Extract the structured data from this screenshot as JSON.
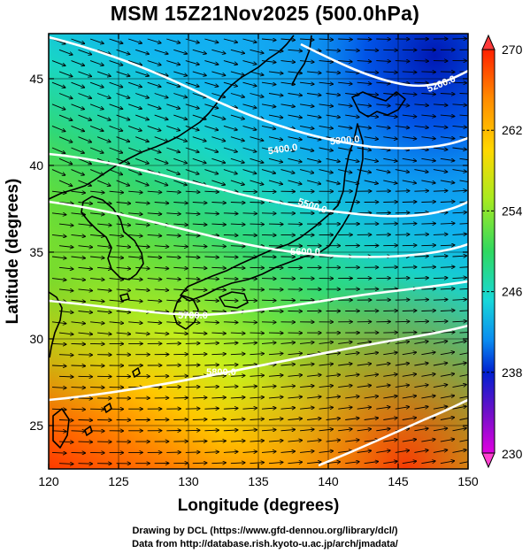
{
  "title": "MSM 15Z21Nov2025 (500.0hPa)",
  "x_axis": {
    "label": "Longitude (degrees)",
    "range": [
      120,
      150
    ],
    "ticks": [
      "120",
      "125",
      "130",
      "135",
      "140",
      "145",
      "150"
    ]
  },
  "y_axis": {
    "label": "Latitude  (degrees)",
    "range": [
      22.5,
      47.6
    ],
    "ticks": [
      "25",
      "30",
      "35",
      "40",
      "45"
    ]
  },
  "colorbar": {
    "range": [
      230,
      270
    ],
    "ticks": [
      "270",
      "262",
      "254",
      "246",
      "238",
      "230"
    ]
  },
  "contours": [
    {
      "label": "5200.0"
    },
    {
      "label": "5300.0"
    },
    {
      "label": "5400.0"
    },
    {
      "label": "5500.0"
    },
    {
      "label": "5600.0"
    },
    {
      "label": "5700.0"
    },
    {
      "label": "5800.0"
    }
  ],
  "credits": {
    "line1": "Drawing by DCL (https://www.gfd-dennou.org/library/dcl/)",
    "line2": "Data from http://database.rish.kyoto-u.ac.jp/arch/jmadata/"
  },
  "colors": {
    "frame": "#000000",
    "contour": "#ffffff",
    "vector": "#000000",
    "coast": "#000000"
  }
}
